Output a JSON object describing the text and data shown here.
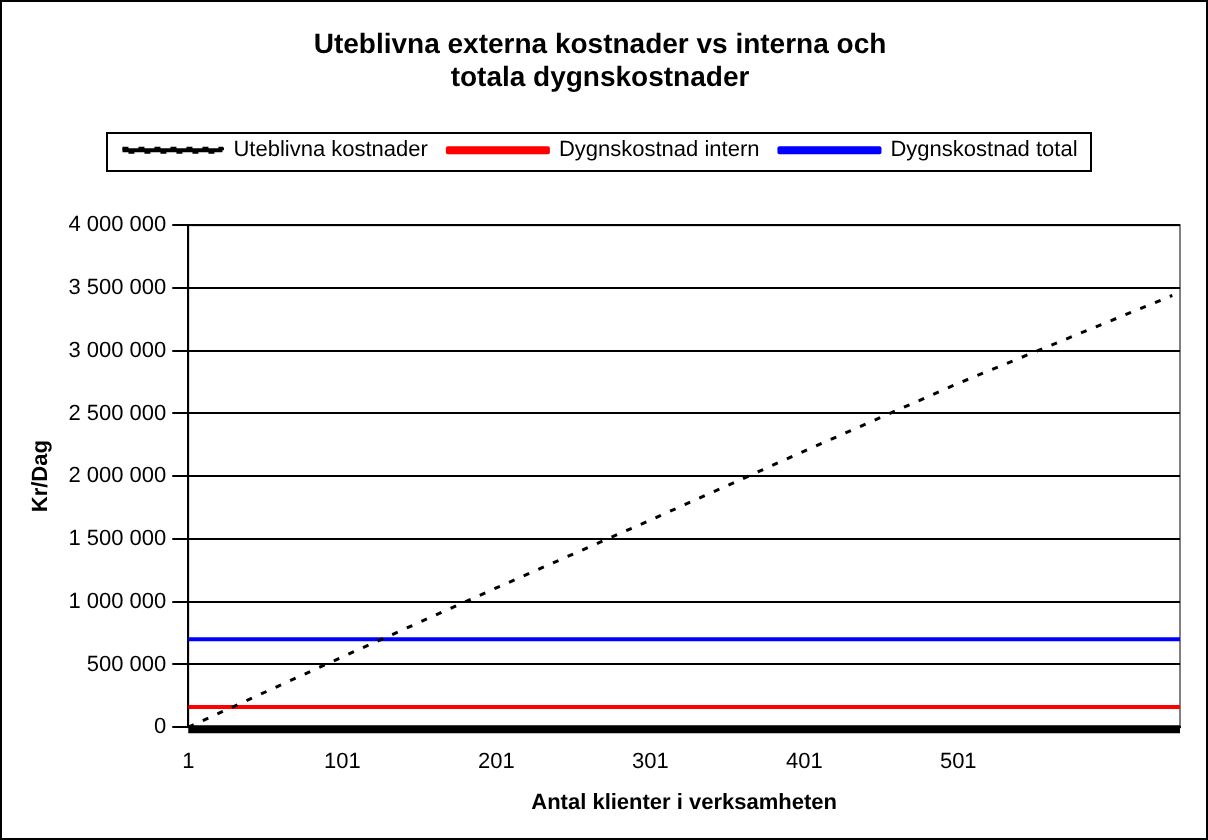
{
  "chart_data": {
    "type": "line",
    "title": "Uteblivna externa kostnader vs interna och totala dygnskostnader",
    "xlabel": "Antal klienter i verksamheten",
    "ylabel": "Kr/Dag",
    "xlim": [
      1,
      645
    ],
    "xticks": [
      1,
      101,
      201,
      301,
      401,
      501
    ],
    "ylim": [
      0,
      4000000
    ],
    "yticks": [
      0,
      500000,
      1000000,
      1500000,
      2000000,
      2500000,
      3000000,
      3500000,
      4000000
    ],
    "grid": "y",
    "legend": "top",
    "marker": "none",
    "series": [
      {
        "name": "Uteblivna kostnader",
        "color": "#000000",
        "line_style": "dotted",
        "x": [
          1,
          101,
          201,
          301,
          401,
          501,
          640
        ],
        "values": [
          0,
          560000,
          1110000,
          1650000,
          2200000,
          2740000,
          3440000
        ]
      },
      {
        "name": "Dygnskostnad intern",
        "color": "#ff0000",
        "line_style": "solid",
        "x": [
          1,
          645
        ],
        "values": [
          160000,
          160000
        ]
      },
      {
        "name": "Dygnskostnad total",
        "color": "#0000ff",
        "line_style": "solid",
        "x": [
          1,
          645
        ],
        "values": [
          700000,
          700000
        ]
      }
    ]
  }
}
